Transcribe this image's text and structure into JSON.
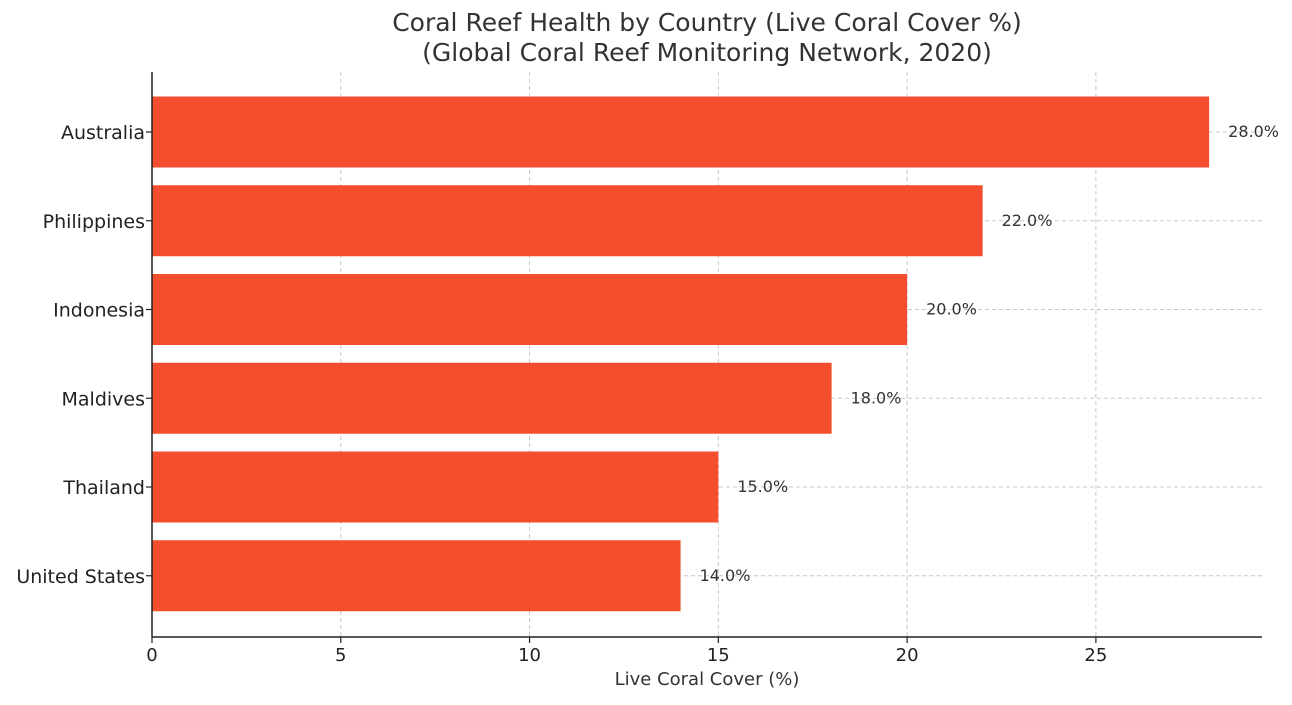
{
  "chart_data": {
    "type": "bar",
    "orientation": "horizontal",
    "title": "Coral Reef Health by Country (Live Coral Cover %)",
    "subtitle": "(Global Coral Reef Monitoring Network, 2020)",
    "xlabel": "Live Coral Cover (%)",
    "ylabel": "",
    "categories": [
      "Australia",
      "Philippines",
      "Indonesia",
      "Maldives",
      "Thailand",
      "United States"
    ],
    "values": [
      28.0,
      22.0,
      20.0,
      18.0,
      15.0,
      14.0
    ],
    "data_labels": [
      "28.0%",
      "22.0%",
      "20.0%",
      "18.0%",
      "15.0%",
      "14.0%"
    ],
    "xlim": [
      0,
      29.4
    ],
    "xticks": [
      0,
      5,
      10,
      15,
      20,
      25
    ],
    "xtick_labels": [
      "0",
      "5",
      "10",
      "15",
      "20",
      "25"
    ],
    "grid": true,
    "bar_color": "#f44e2e"
  }
}
